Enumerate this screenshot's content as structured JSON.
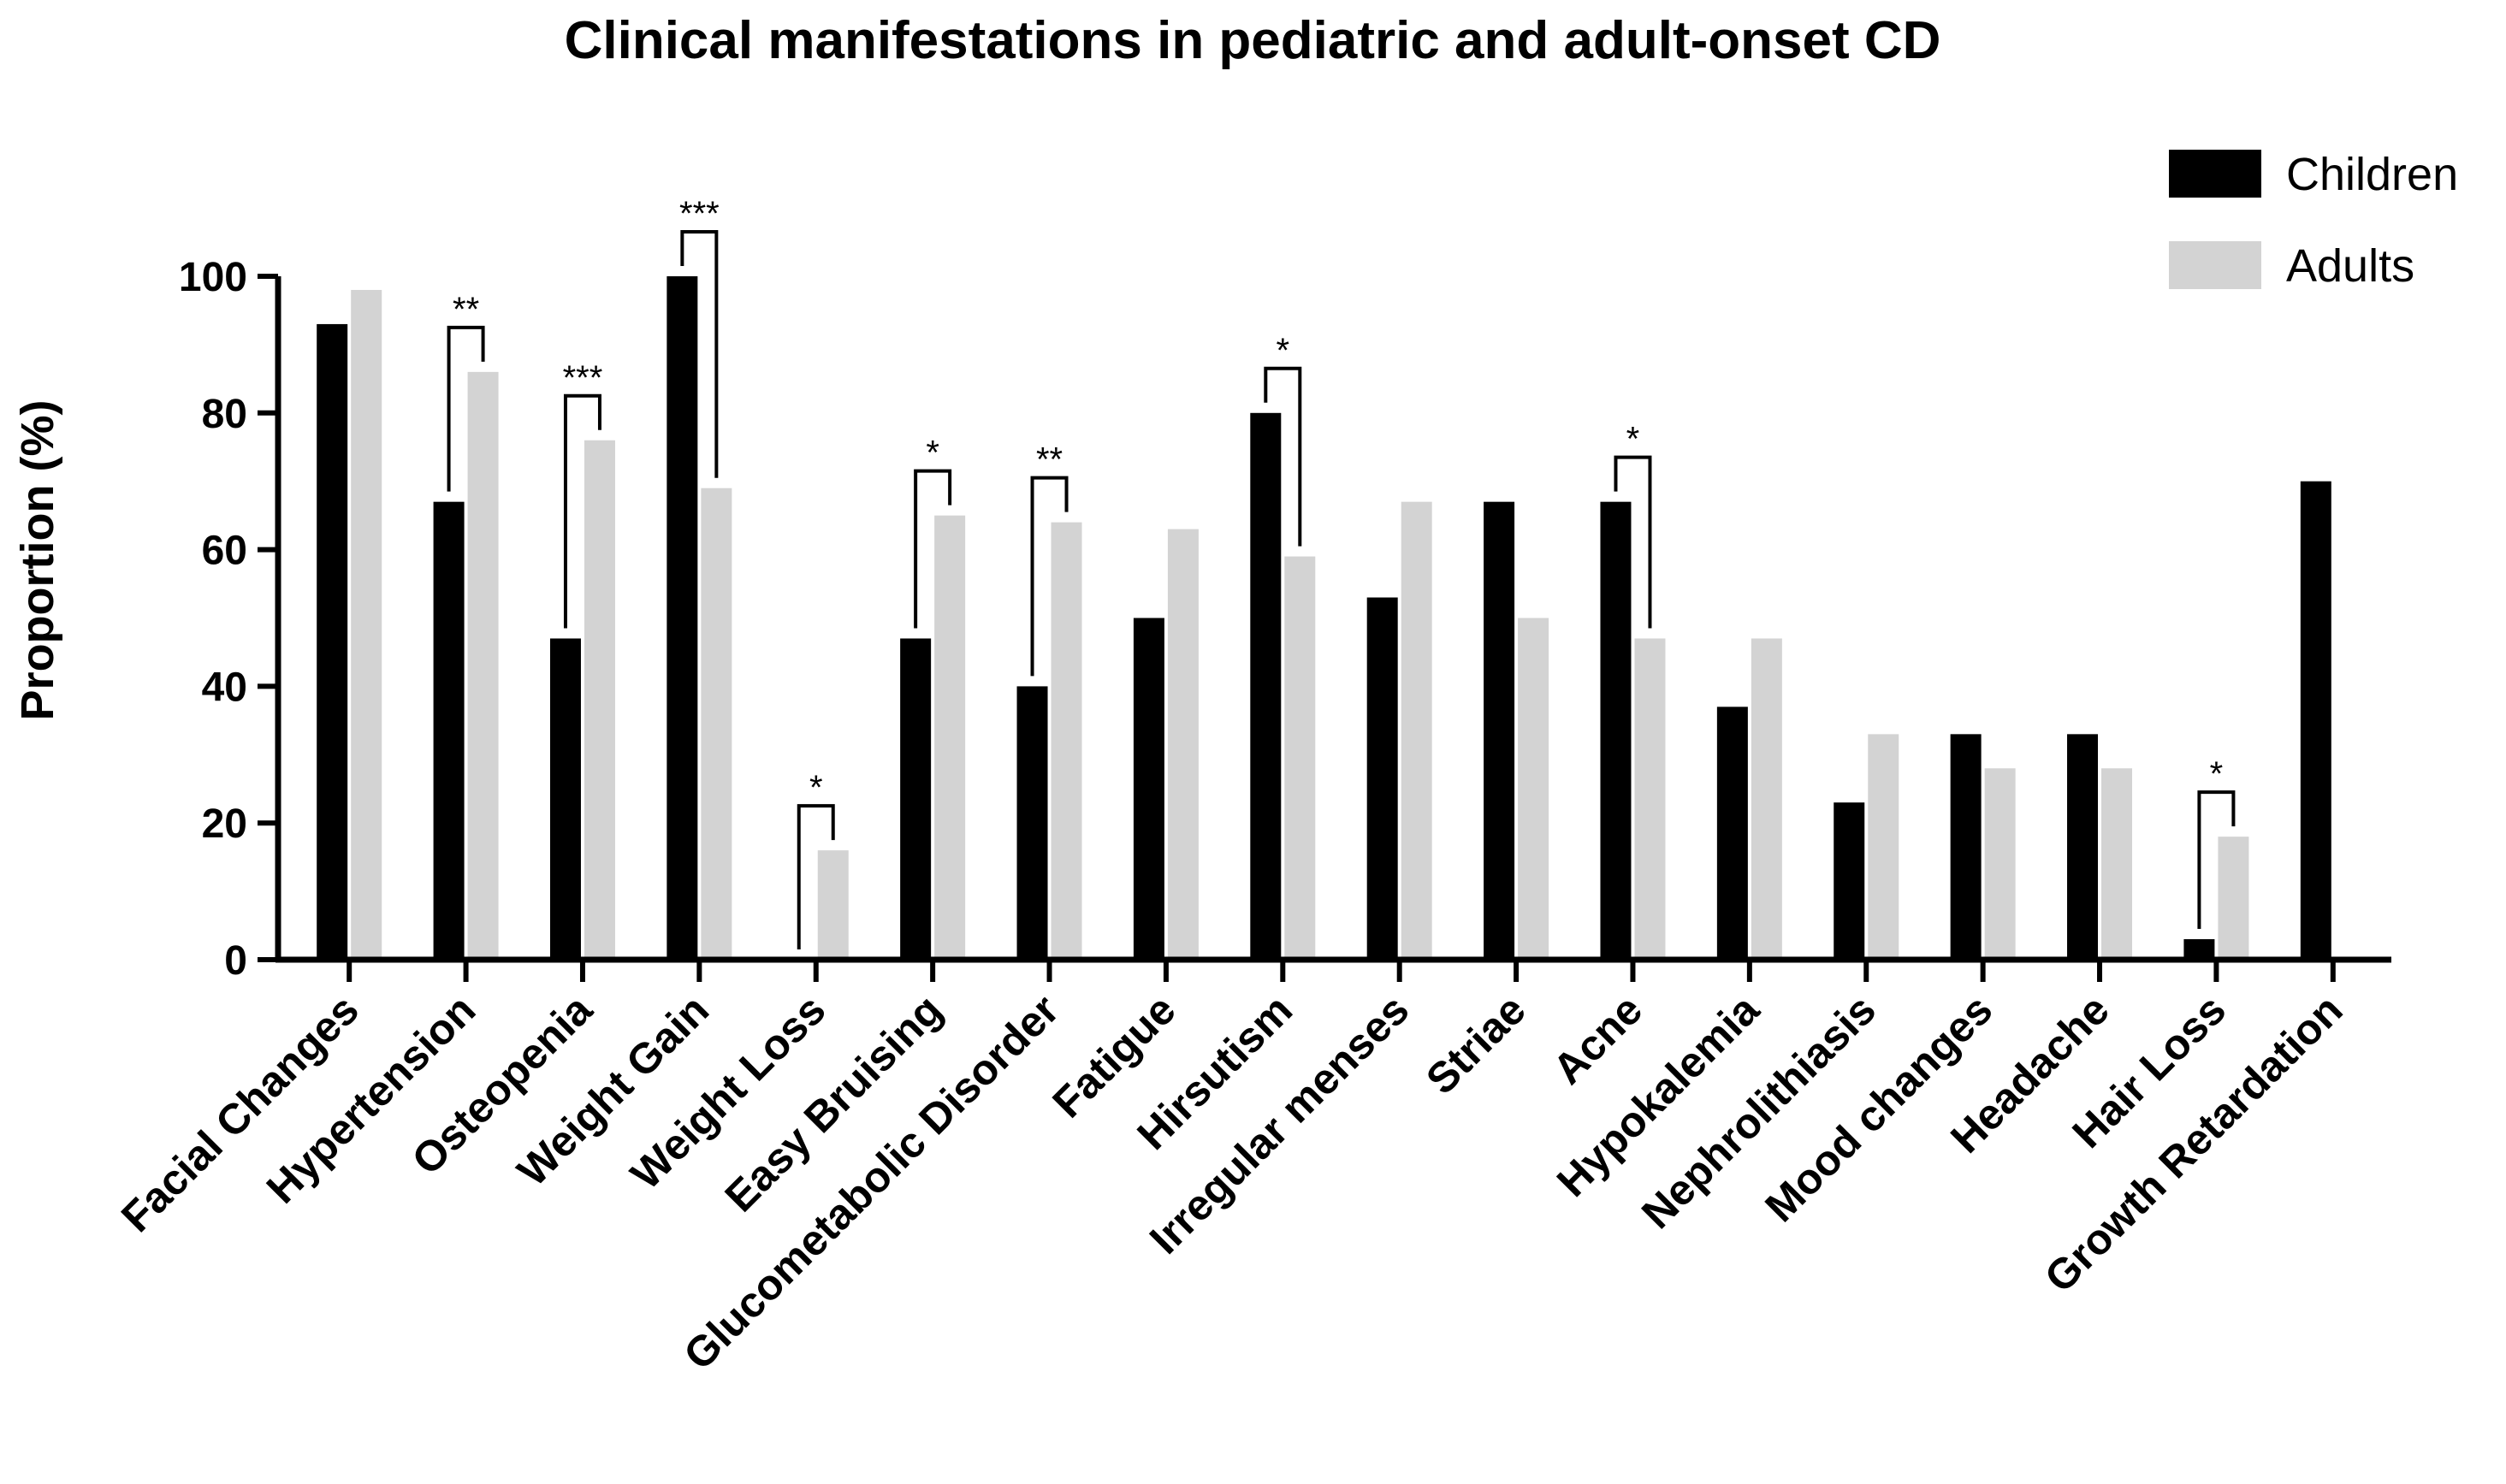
{
  "chart_data": {
    "type": "bar",
    "title": "Clinical manifestations  in pediatric and adult-onset CD",
    "xlabel": "",
    "ylabel": "Proportion (%)",
    "ylim": [
      0,
      100
    ],
    "yticks": [
      "0",
      "20",
      "40",
      "60",
      "80",
      "100"
    ],
    "grid": false,
    "legend_position": "top-right",
    "categories": [
      "Facial Changes",
      "Hypertension",
      "Osteopenia",
      "Weight Gain",
      "Weight Loss",
      "Easy Bruising",
      "Glucometabolic Disorder",
      "Fatigue",
      "Hirsutism",
      "Irregular menses",
      "Striae",
      "Acne",
      "Hypokalemia",
      "Nephrolithiasis",
      "Mood changes",
      "Headache",
      "Hair Loss",
      "Growth Retardation"
    ],
    "series": [
      {
        "name": "Children",
        "color": "#000000",
        "values": [
          93,
          67,
          47,
          100,
          0,
          47,
          40,
          50,
          80,
          53,
          67,
          67,
          37,
          23,
          33,
          33,
          3,
          70
        ]
      },
      {
        "name": "Adults",
        "color": "#d3d3d3",
        "values": [
          98,
          86,
          76,
          69,
          16,
          65,
          64,
          63,
          59,
          67,
          50,
          47,
          47,
          33,
          28,
          28,
          18,
          0
        ]
      }
    ],
    "significance": [
      {
        "category": "Hypertension",
        "label": "**"
      },
      {
        "category": "Osteopenia",
        "label": "***"
      },
      {
        "category": "Weight Gain",
        "label": "***"
      },
      {
        "category": "Weight Loss",
        "label": "*"
      },
      {
        "category": "Easy Bruising",
        "label": "*"
      },
      {
        "category": "Glucometabolic Disorder",
        "label": "**"
      },
      {
        "category": "Hirsutism",
        "label": "*"
      },
      {
        "category": "Acne",
        "label": "*"
      },
      {
        "category": "Hair Loss",
        "label": "*"
      }
    ]
  }
}
